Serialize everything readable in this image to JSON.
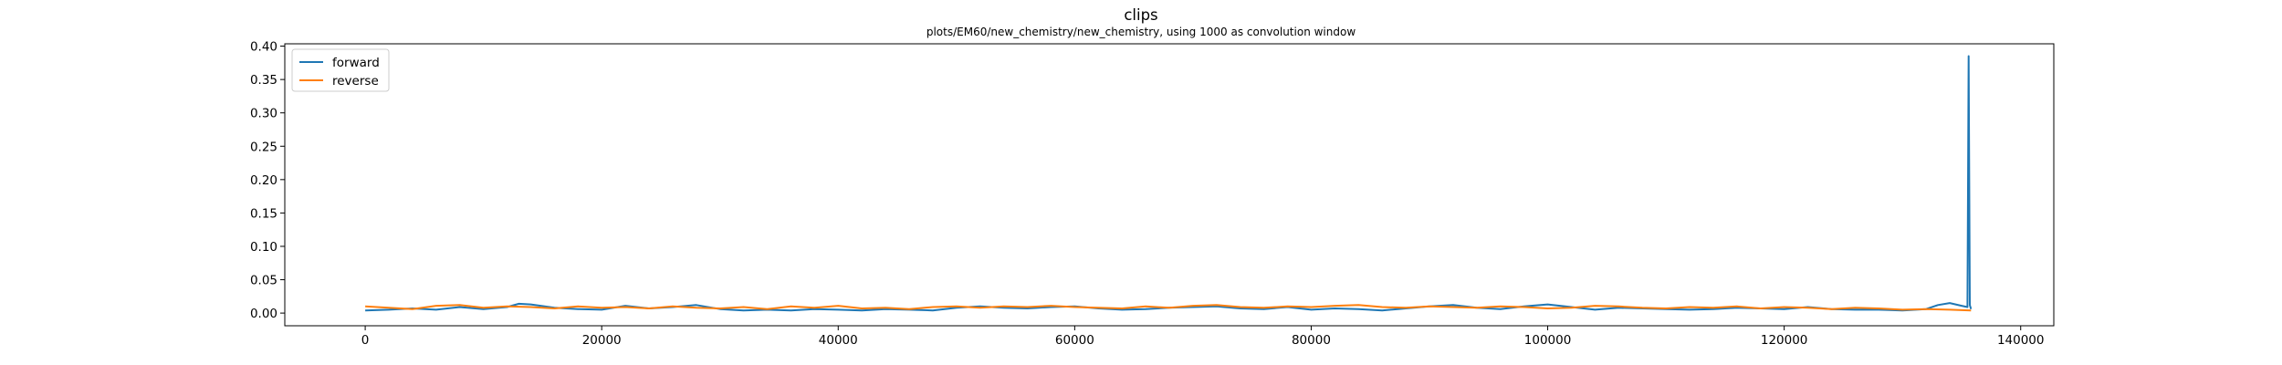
{
  "chart_data": {
    "type": "line",
    "title": "clips",
    "subtitle": "plots/EM60/new_chemistry/new_chemistry, using 1000 as convolution window",
    "xlabel": "",
    "ylabel": "",
    "xlim": [
      -6800,
      142800
    ],
    "ylim": [
      -0.019,
      0.4035
    ],
    "xticks": [
      0,
      20000,
      40000,
      60000,
      80000,
      100000,
      120000,
      140000
    ],
    "xtick_labels": [
      "0",
      "20000",
      "40000",
      "60000",
      "80000",
      "100000",
      "120000",
      "140000"
    ],
    "yticks": [
      0.0,
      0.05,
      0.1,
      0.15,
      0.2,
      0.25,
      0.3,
      0.35,
      0.4
    ],
    "ytick_labels": [
      "0.00",
      "0.05",
      "0.10",
      "0.15",
      "0.20",
      "0.25",
      "0.30",
      "0.35",
      "0.40"
    ],
    "grid": false,
    "legend_position": "top-left",
    "series": [
      {
        "name": "forward",
        "color": "#1f77b4",
        "x": [
          0,
          2000,
          4000,
          6000,
          8000,
          10000,
          12000,
          13000,
          14000,
          16000,
          18000,
          20000,
          22000,
          24000,
          26000,
          28000,
          30000,
          32000,
          34000,
          36000,
          38000,
          40000,
          42000,
          44000,
          46000,
          48000,
          50000,
          52000,
          54000,
          56000,
          58000,
          60000,
          62000,
          64000,
          66000,
          68000,
          70000,
          72000,
          74000,
          76000,
          78000,
          80000,
          82000,
          84000,
          86000,
          88000,
          90000,
          92000,
          94000,
          96000,
          98000,
          100000,
          102000,
          104000,
          106000,
          108000,
          110000,
          112000,
          114000,
          116000,
          118000,
          120000,
          122000,
          124000,
          126000,
          128000,
          130000,
          132000,
          133000,
          134000,
          135000,
          135500,
          135600,
          135700,
          135800
        ],
        "y": [
          0.004,
          0.005,
          0.007,
          0.005,
          0.009,
          0.006,
          0.009,
          0.014,
          0.013,
          0.008,
          0.006,
          0.005,
          0.011,
          0.007,
          0.009,
          0.012,
          0.006,
          0.004,
          0.005,
          0.004,
          0.006,
          0.005,
          0.004,
          0.006,
          0.005,
          0.004,
          0.008,
          0.01,
          0.008,
          0.007,
          0.009,
          0.01,
          0.007,
          0.005,
          0.006,
          0.008,
          0.009,
          0.01,
          0.007,
          0.006,
          0.009,
          0.005,
          0.007,
          0.006,
          0.004,
          0.007,
          0.01,
          0.012,
          0.008,
          0.006,
          0.01,
          0.013,
          0.009,
          0.005,
          0.008,
          0.007,
          0.006,
          0.005,
          0.006,
          0.008,
          0.007,
          0.006,
          0.009,
          0.006,
          0.005,
          0.005,
          0.004,
          0.006,
          0.012,
          0.015,
          0.011,
          0.009,
          0.385,
          0.012,
          0.006
        ]
      },
      {
        "name": "reverse",
        "color": "#ff7f0e",
        "x": [
          0,
          2000,
          4000,
          6000,
          8000,
          10000,
          12000,
          14000,
          16000,
          18000,
          20000,
          22000,
          24000,
          26000,
          28000,
          30000,
          32000,
          34000,
          36000,
          38000,
          40000,
          42000,
          44000,
          46000,
          48000,
          50000,
          52000,
          54000,
          56000,
          58000,
          60000,
          62000,
          64000,
          66000,
          68000,
          70000,
          72000,
          74000,
          76000,
          78000,
          80000,
          82000,
          84000,
          86000,
          88000,
          90000,
          92000,
          94000,
          96000,
          98000,
          100000,
          102000,
          104000,
          106000,
          108000,
          110000,
          112000,
          114000,
          116000,
          118000,
          120000,
          122000,
          124000,
          126000,
          128000,
          130000,
          132000,
          134000,
          135800
        ],
        "y": [
          0.01,
          0.008,
          0.006,
          0.011,
          0.012,
          0.008,
          0.01,
          0.009,
          0.007,
          0.01,
          0.008,
          0.009,
          0.007,
          0.01,
          0.008,
          0.007,
          0.009,
          0.006,
          0.01,
          0.008,
          0.011,
          0.007,
          0.008,
          0.006,
          0.009,
          0.01,
          0.008,
          0.01,
          0.009,
          0.011,
          0.009,
          0.008,
          0.007,
          0.01,
          0.008,
          0.011,
          0.012,
          0.009,
          0.008,
          0.01,
          0.009,
          0.011,
          0.012,
          0.009,
          0.008,
          0.01,
          0.009,
          0.008,
          0.01,
          0.009,
          0.007,
          0.008,
          0.011,
          0.01,
          0.008,
          0.007,
          0.009,
          0.008,
          0.01,
          0.007,
          0.009,
          0.008,
          0.006,
          0.008,
          0.007,
          0.005,
          0.006,
          0.005,
          0.004
        ]
      }
    ]
  }
}
